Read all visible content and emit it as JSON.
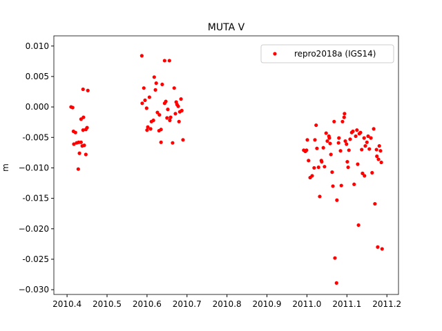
{
  "chart_data": {
    "type": "scatter",
    "title": "MUTA V",
    "ylabel": "m",
    "xlim": [
      2010.367,
      2011.229
    ],
    "ylim": [
      -0.03078,
      0.01167
    ],
    "xticks": [
      2010.4,
      2010.5,
      2010.6,
      2010.7,
      2010.8,
      2010.9,
      {
        "value": 2011.0,
        "label": "2011.0"
      },
      2011.1,
      2011.2
    ],
    "yticks": [
      {
        "value": -0.03,
        "label": "−0.030"
      },
      -0.025,
      {
        "value": -0.02,
        "label": "−0.020"
      },
      -0.015,
      {
        "value": -0.01,
        "label": "−0.010"
      },
      -0.005,
      {
        "value": 0,
        "label": "0.000"
      },
      0.005,
      {
        "value": 0.01,
        "label": "0.010"
      }
    ],
    "legend": "upper right",
    "series": [
      {
        "name": "repro2018a (IGS14)",
        "color": "#ff0000",
        "x": [
          2010.41,
          2010.414,
          2010.416,
          2010.421,
          2010.417,
          2010.424,
          2010.429,
          2010.428,
          2010.431,
          2010.435,
          2010.435,
          2010.441,
          2010.44,
          2010.447,
          2010.438,
          2010.44,
          2010.452,
          2010.443,
          2010.447,
          2010.45,
          2010.587,
          2010.592,
          2010.588,
          2010.595,
          2010.599,
          2010.602,
          2010.6,
          2010.606,
          2010.609,
          2010.611,
          2010.616,
          2010.618,
          2010.621,
          2010.623,
          2010.626,
          2010.63,
          2010.631,
          2010.635,
          2010.635,
          2010.638,
          2010.644,
          2010.656,
          2010.644,
          2010.647,
          2010.65,
          2010.652,
          2010.657,
          2010.659,
          2010.664,
          2010.668,
          2010.671,
          2010.675,
          2010.678,
          2010.68,
          2010.682,
          2010.685,
          2010.687,
          2010.69,
          2010.673,
          2010.992,
          2010.996,
          2010.999,
          2011.001,
          2011.004,
          2011.008,
          2011.013,
          2011.018,
          2011.02,
          2011.023,
          2011.025,
          2011.029,
          2011.032,
          2011.036,
          2011.037,
          2011.041,
          2011.044,
          2011.048,
          2011.051,
          2011.055,
          2011.056,
          2011.058,
          2011.06,
          2011.063,
          2011.065,
          2011.068,
          2011.07,
          2011.074,
          2011.075,
          2011.079,
          2011.08,
          2011.084,
          2011.086,
          2011.089,
          2011.093,
          2011.094,
          2011.096,
          2011.099,
          2011.101,
          2011.103,
          2011.105,
          2011.108,
          2011.112,
          2011.115,
          2011.118,
          2011.122,
          2011.125,
          2011.127,
          2011.129,
          2011.131,
          2011.134,
          2011.137,
          2011.139,
          2011.143,
          2011.144,
          2011.146,
          2011.15,
          2011.153,
          2011.156,
          2011.16,
          2011.163,
          2011.167,
          2011.17,
          2011.174,
          2011.175,
          2011.179,
          2011.177,
          2011.181,
          2011.184,
          2011.188,
          2011.186
        ],
        "values": [
          0.0,
          -0.0001,
          -0.004,
          -0.0042,
          -0.0061,
          -0.0059,
          -0.0058,
          -0.0102,
          -0.0076,
          -0.0058,
          -0.002,
          -0.0017,
          -0.0038,
          -0.0037,
          -0.0064,
          0.0029,
          0.0027,
          -0.0063,
          -0.0078,
          -0.0034,
          0.0084,
          0.0031,
          0.0006,
          0.0011,
          -0.0002,
          -0.0033,
          -0.0038,
          0.0016,
          -0.0036,
          -0.0024,
          -0.0022,
          0.0049,
          0.0028,
          0.0039,
          -0.0009,
          -0.0039,
          -0.0013,
          -0.0037,
          -0.0058,
          0.0037,
          0.0076,
          0.0076,
          0.0006,
          0.0009,
          -0.0018,
          -0.0004,
          -0.0022,
          -0.0017,
          -0.0059,
          0.0031,
          -0.0011,
          0.0004,
          0.0001,
          -0.0024,
          -0.0008,
          0.0013,
          -0.0006,
          -0.0054,
          0.0008,
          -0.0071,
          -0.0073,
          -0.0071,
          -0.0054,
          -0.0088,
          -0.0116,
          -0.0113,
          -0.01,
          -0.0054,
          -0.003,
          -0.0068,
          -0.0099,
          -0.0147,
          -0.0088,
          -0.009,
          -0.0067,
          -0.0098,
          -0.0043,
          -0.0056,
          -0.0048,
          -0.0051,
          -0.006,
          -0.0078,
          -0.0107,
          -0.013,
          -0.0024,
          -0.0248,
          -0.0289,
          -0.0153,
          -0.0059,
          -0.0051,
          -0.0072,
          -0.0129,
          -0.0024,
          -0.0017,
          -0.0011,
          -0.0056,
          -0.0061,
          -0.009,
          -0.0099,
          -0.0071,
          -0.0053,
          -0.0042,
          -0.004,
          -0.0127,
          -0.0048,
          -0.0038,
          -0.0094,
          -0.0194,
          -0.0044,
          -0.0042,
          -0.007,
          -0.0109,
          -0.0051,
          -0.0113,
          -0.0064,
          -0.0058,
          -0.0048,
          -0.0069,
          -0.0051,
          -0.0108,
          -0.0036,
          -0.0159,
          -0.007,
          -0.0081,
          -0.0086,
          -0.023,
          -0.0064,
          -0.0072,
          -0.0233,
          -0.0091
        ]
      }
    ]
  }
}
